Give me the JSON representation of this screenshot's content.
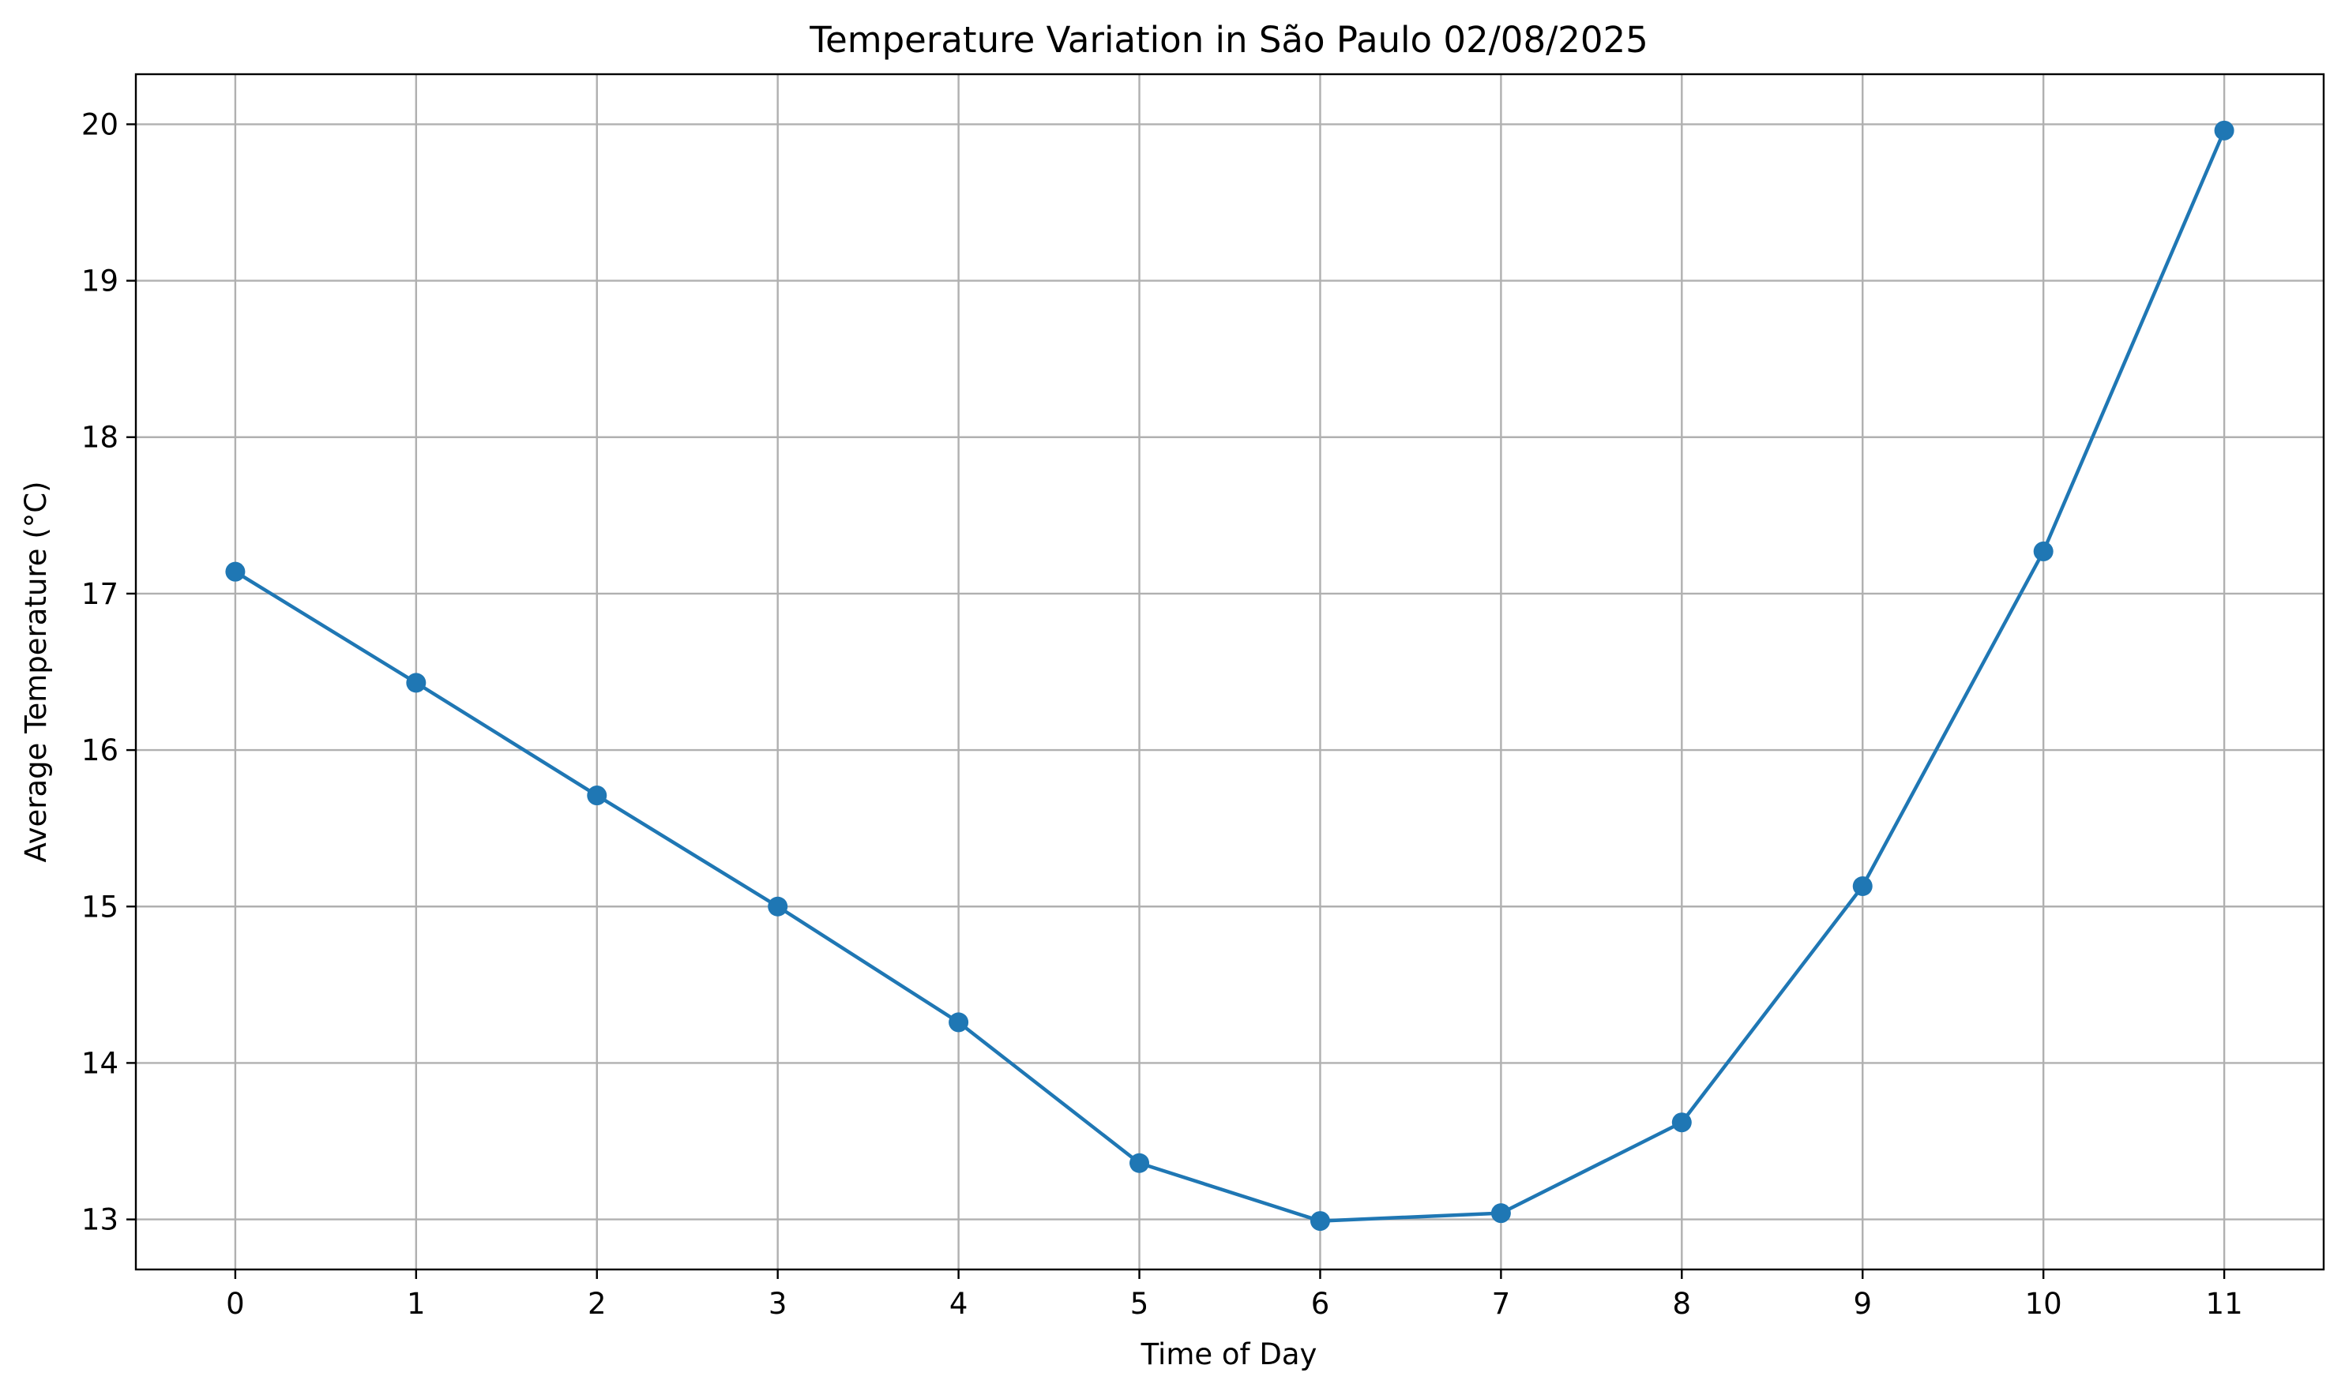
{
  "chart_data": {
    "type": "line",
    "title": "Temperature Variation in São Paulo 02/08/2025",
    "xlabel": "Time of Day",
    "ylabel": "Average Temperature (°C)",
    "x": [
      0,
      1,
      2,
      3,
      4,
      5,
      6,
      7,
      8,
      9,
      10,
      11
    ],
    "x_ticks": [
      "0",
      "1",
      "2",
      "3",
      "4",
      "5",
      "6",
      "7",
      "8",
      "9",
      "10",
      "11"
    ],
    "y_ticks": [
      "13",
      "14",
      "15",
      "16",
      "17",
      "18",
      "19",
      "20"
    ],
    "xlim": [
      -0.55,
      11.55
    ],
    "ylim": [
      12.68,
      20.32
    ],
    "grid": true,
    "series": [
      {
        "values": [
          17.14,
          16.43,
          15.71,
          15.0,
          14.26,
          13.36,
          12.99,
          13.04,
          13.62,
          15.13,
          17.27,
          19.96
        ],
        "color": "#1f77b4",
        "marker": "circle"
      }
    ]
  }
}
